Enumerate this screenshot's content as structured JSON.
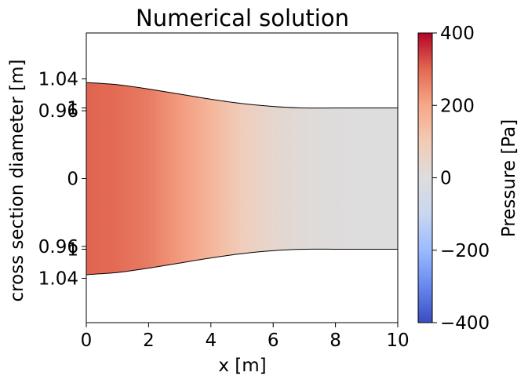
{
  "chart_data": {
    "type": "heatmap",
    "title": "Numerical solution",
    "xlabel": "x [m]",
    "ylabel": "cross section diameter [m]",
    "xlim": [
      0,
      10
    ],
    "x_ticks": [
      "0",
      "2",
      "4",
      "6",
      "8",
      "10"
    ],
    "y_ticks": [
      "1.04",
      "1",
      "0.96",
      "0",
      "0.96",
      "1",
      "1.04"
    ],
    "grid": false,
    "profile": {
      "x": [
        0,
        1,
        2,
        3,
        4,
        5,
        6,
        7,
        8,
        9,
        10
      ],
      "half_diameter": [
        1.035,
        1.032,
        1.026,
        1.019,
        1.012,
        1.006,
        1.002,
        1.0,
        1.0,
        1.0,
        1.0
      ]
    },
    "pressure": {
      "x": [
        0,
        1,
        2,
        3,
        4,
        5,
        6,
        7,
        8,
        9,
        10
      ],
      "values": [
        305,
        295,
        270,
        220,
        160,
        90,
        40,
        15,
        5,
        1,
        0
      ]
    },
    "colorbar": {
      "label": "Pressure [Pa]",
      "range": [
        -400,
        400
      ],
      "ticks": [
        "400",
        "200",
        "0",
        "−200",
        "−400"
      ],
      "tick_values": [
        400,
        200,
        0,
        -200,
        -400
      ],
      "colormap": "coolwarm",
      "stops": [
        "#3b4cc0",
        "#6788ee",
        "#9abbff",
        "#c9d7f0",
        "#dddddd",
        "#f2cbb7",
        "#f7a889",
        "#e26952",
        "#b40426"
      ]
    }
  }
}
